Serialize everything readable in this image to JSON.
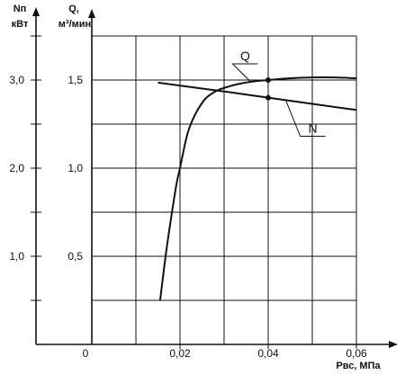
{
  "chart_data": {
    "type": "line",
    "axes": {
      "x": {
        "label": "Pвс, МПа",
        "range": [
          0,
          0.06
        ],
        "ticks": [
          0,
          0.02,
          0.04,
          0.06
        ],
        "tick_labels": [
          "0",
          "0,02",
          "0,04",
          "0,06"
        ]
      },
      "y_power": {
        "label_line1": "Nп",
        "label_line2": "кВт",
        "range": [
          0,
          3.5
        ],
        "ticks": [
          1.0,
          2.0,
          3.0
        ],
        "tick_labels": [
          "1,0",
          "2,0",
          "3,0"
        ]
      },
      "y_flow": {
        "label_line1": "Q,",
        "label_line2": "м³/мин",
        "range": [
          0,
          1.75
        ],
        "ticks": [
          0.5,
          1.0,
          1.5
        ],
        "tick_labels": [
          "0,5",
          "1,0",
          "1,5"
        ]
      }
    },
    "grid": true,
    "series": [
      {
        "name": "Q",
        "axis": "y_flow",
        "x": [
          0.0155,
          0.017,
          0.019,
          0.02,
          0.022,
          0.025,
          0.028,
          0.032,
          0.036,
          0.04,
          0.045,
          0.05,
          0.055,
          0.06
        ],
        "y": [
          0.25,
          0.55,
          0.88,
          1.0,
          1.22,
          1.37,
          1.435,
          1.47,
          1.49,
          1.5,
          1.51,
          1.515,
          1.515,
          1.51
        ]
      },
      {
        "name": "N",
        "axis": "y_power",
        "x": [
          0.015,
          0.03,
          0.04,
          0.06
        ],
        "y": [
          2.97,
          2.87,
          2.8,
          2.66
        ]
      }
    ],
    "markers": [
      {
        "series": "Q",
        "x": 0.04,
        "y": 1.5
      },
      {
        "series": "N",
        "x": 0.04,
        "y": 2.8
      }
    ]
  }
}
